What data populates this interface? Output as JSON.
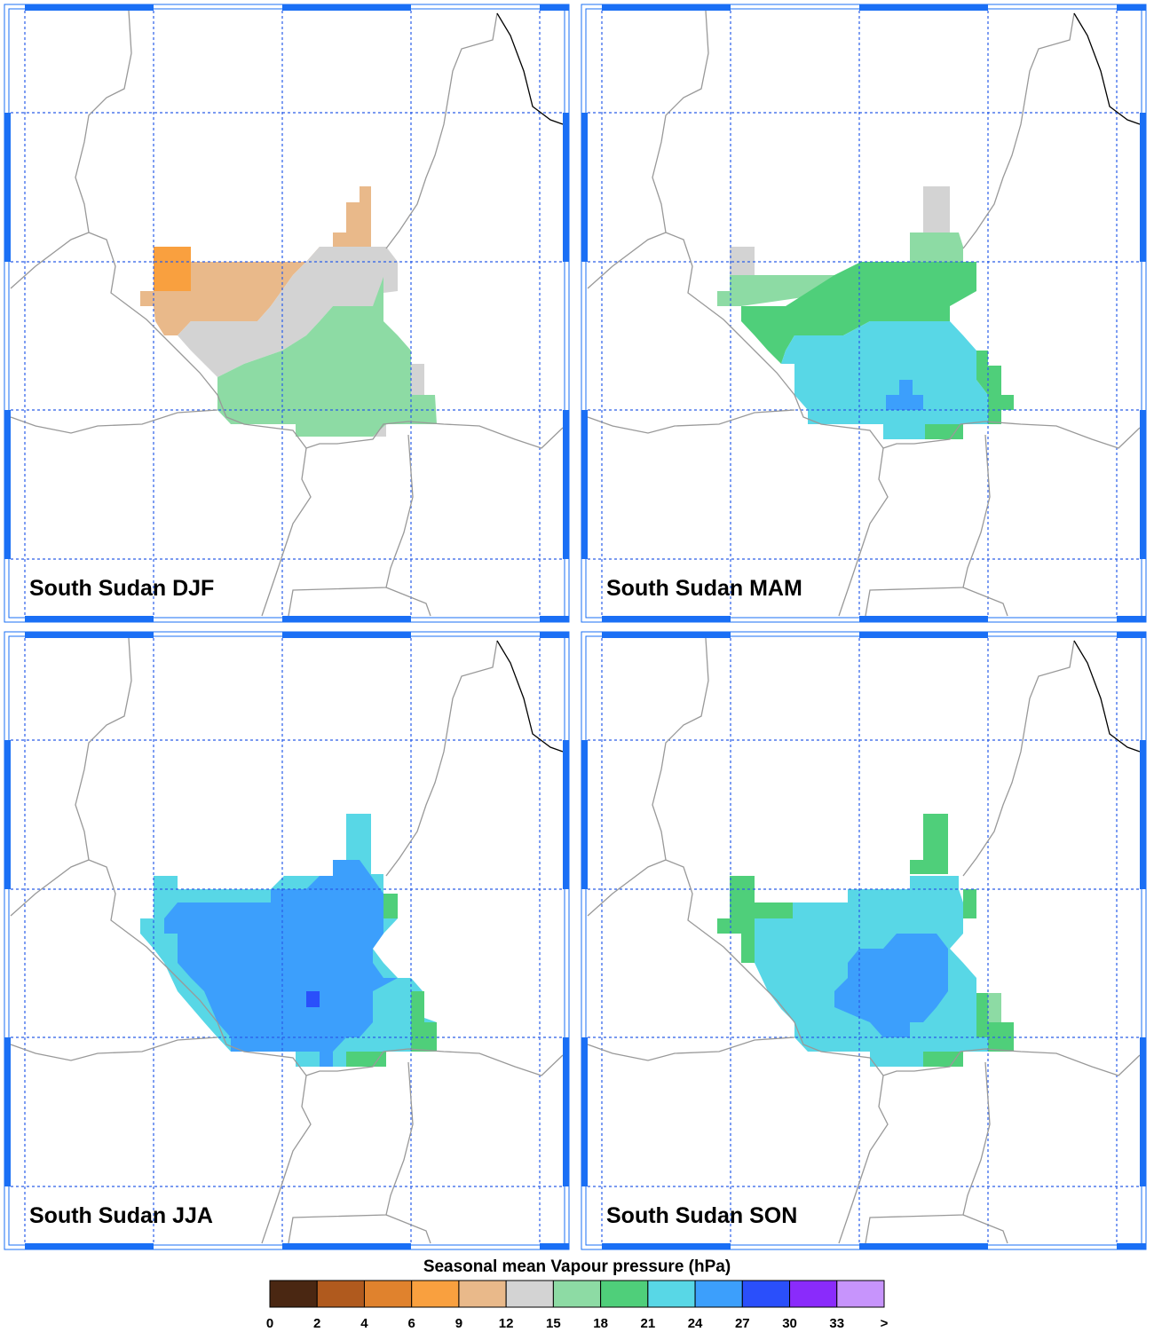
{
  "panels": [
    {
      "title": "South Sudan DJF"
    },
    {
      "title": "South Sudan MAM"
    },
    {
      "title": "South Sudan JJA"
    },
    {
      "title": "South Sudan SON"
    }
  ],
  "colorbar": {
    "title": "Seasonal mean Vapour pressure (hPa)",
    "colors": [
      "#4a2712",
      "#b05a1e",
      "#e0822d",
      "#f9a03f",
      "#e9b98a",
      "#d3d3d3",
      "#8ddba4",
      "#4fcf7a",
      "#58d7e6",
      "#3c9ffc",
      "#2a4ffb",
      "#8a2bfb",
      "#c794fc"
    ],
    "labels": [
      0,
      2,
      4,
      6,
      9,
      12,
      15,
      18,
      21,
      24,
      27,
      30,
      33,
      ">"
    ]
  }
}
